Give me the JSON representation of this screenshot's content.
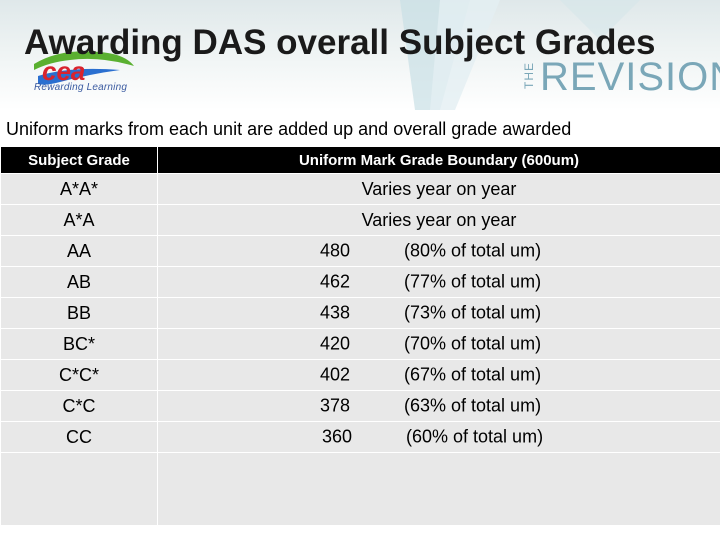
{
  "header": {
    "title": "Awarding DAS overall Subject Grades",
    "logo_text": "cea",
    "logo_tagline": "Rewarding Learning",
    "revision_prefix": "THE",
    "revision_word": "REVISION"
  },
  "subtitle": "Uniform marks from each unit are added up and overall grade awarded",
  "table": {
    "headers": [
      "Subject Grade",
      "Uniform Mark Grade Boundary (600um)"
    ],
    "rows": [
      {
        "grade": "A*A*",
        "text": "Varies year on year"
      },
      {
        "grade": "A*A",
        "text": "Varies year on year"
      },
      {
        "grade": "AA",
        "mark": "480",
        "percent": "(80% of total um)"
      },
      {
        "grade": "AB",
        "mark": "462",
        "percent": "(77% of total um)"
      },
      {
        "grade": "BB",
        "mark": "438",
        "percent": "(73% of total um)"
      },
      {
        "grade": "BC*",
        "mark": "420",
        "percent": "(70% of total um)"
      },
      {
        "grade": "C*C*",
        "mark": "402",
        "percent": "(67% of total um)"
      },
      {
        "grade": "C*C",
        "mark": "378",
        "percent": "(63% of total um)"
      },
      {
        "grade": "CC",
        "mark": "360",
        "percent": "(60% of total um)"
      }
    ]
  },
  "colors": {
    "header_bg": "#000000",
    "cell_bg": "#e8e8e8",
    "accent": "#7aa7b8",
    "logo_red": "#d9232e",
    "logo_green": "#5ab030",
    "logo_blue": "#2a6fd0"
  }
}
